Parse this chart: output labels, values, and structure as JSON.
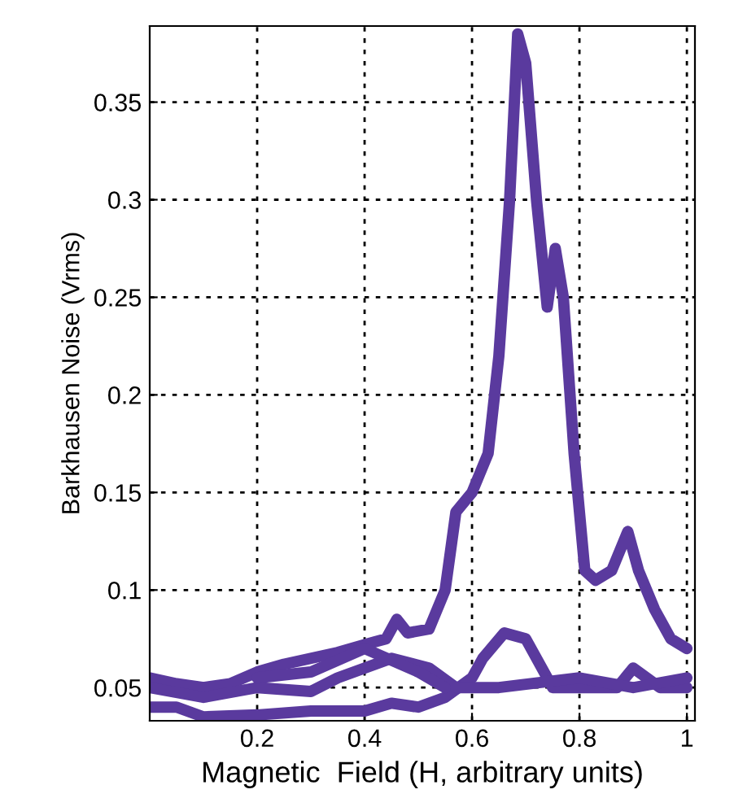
{
  "chart_data": {
    "type": "line",
    "xlabel": "Magnetic  Field (H, arbitrary units)",
    "ylabel": "Barkhausen Noise (Vrms)",
    "xlim": [
      0,
      1.015
    ],
    "ylim": [
      0.033,
      0.389
    ],
    "xticks": [
      0.2,
      0.4,
      0.6,
      0.8,
      1
    ],
    "yticks": [
      0.05,
      0.1,
      0.15,
      0.2,
      0.25,
      0.3,
      0.35
    ],
    "grid": true,
    "line_style": "solid",
    "marker": "none",
    "series": [
      {
        "color": "#5a3a9e",
        "x": [
          0,
          0.05,
          0.1,
          0.15,
          0.2,
          0.25,
          0.3,
          0.35,
          0.4,
          0.44,
          0.46,
          0.48,
          0.52,
          0.55,
          0.57,
          0.6,
          0.63,
          0.65,
          0.67,
          0.685,
          0.7,
          0.72,
          0.74,
          0.755,
          0.77,
          0.79,
          0.81,
          0.83,
          0.86,
          0.89,
          0.91,
          0.94,
          0.97,
          1.0
        ],
        "values": [
          0.055,
          0.052,
          0.05,
          0.052,
          0.058,
          0.062,
          0.065,
          0.068,
          0.072,
          0.075,
          0.085,
          0.078,
          0.08,
          0.1,
          0.14,
          0.15,
          0.17,
          0.22,
          0.3,
          0.385,
          0.37,
          0.3,
          0.245,
          0.275,
          0.25,
          0.17,
          0.11,
          0.105,
          0.11,
          0.13,
          0.11,
          0.09,
          0.075,
          0.07
        ]
      },
      {
        "color": "#5a3a9e",
        "x": [
          1.0,
          0.95,
          0.9,
          0.87,
          0.8,
          0.75,
          0.7,
          0.66,
          0.62,
          0.6,
          0.55,
          0.5,
          0.45,
          0.4,
          0.3,
          0.2,
          0.1,
          0.05,
          0
        ],
        "values": [
          0.05,
          0.05,
          0.06,
          0.05,
          0.05,
          0.05,
          0.075,
          0.078,
          0.065,
          0.055,
          0.045,
          0.04,
          0.042,
          0.038,
          0.038,
          0.036,
          0.035,
          0.04,
          0.04
        ]
      },
      {
        "color": "#5a3a9e",
        "x": [
          0,
          0.1,
          0.2,
          0.3,
          0.35,
          0.45,
          0.52,
          0.57,
          0.65,
          0.8,
          0.9,
          1.0
        ],
        "values": [
          0.05,
          0.045,
          0.05,
          0.048,
          0.055,
          0.065,
          0.06,
          0.05,
          0.05,
          0.055,
          0.05,
          0.055
        ]
      },
      {
        "color": "#5a3a9e",
        "x": [
          0.2,
          0.3,
          0.4,
          0.5,
          0.55
        ],
        "values": [
          0.055,
          0.058,
          0.07,
          0.058,
          0.05
        ]
      }
    ]
  }
}
